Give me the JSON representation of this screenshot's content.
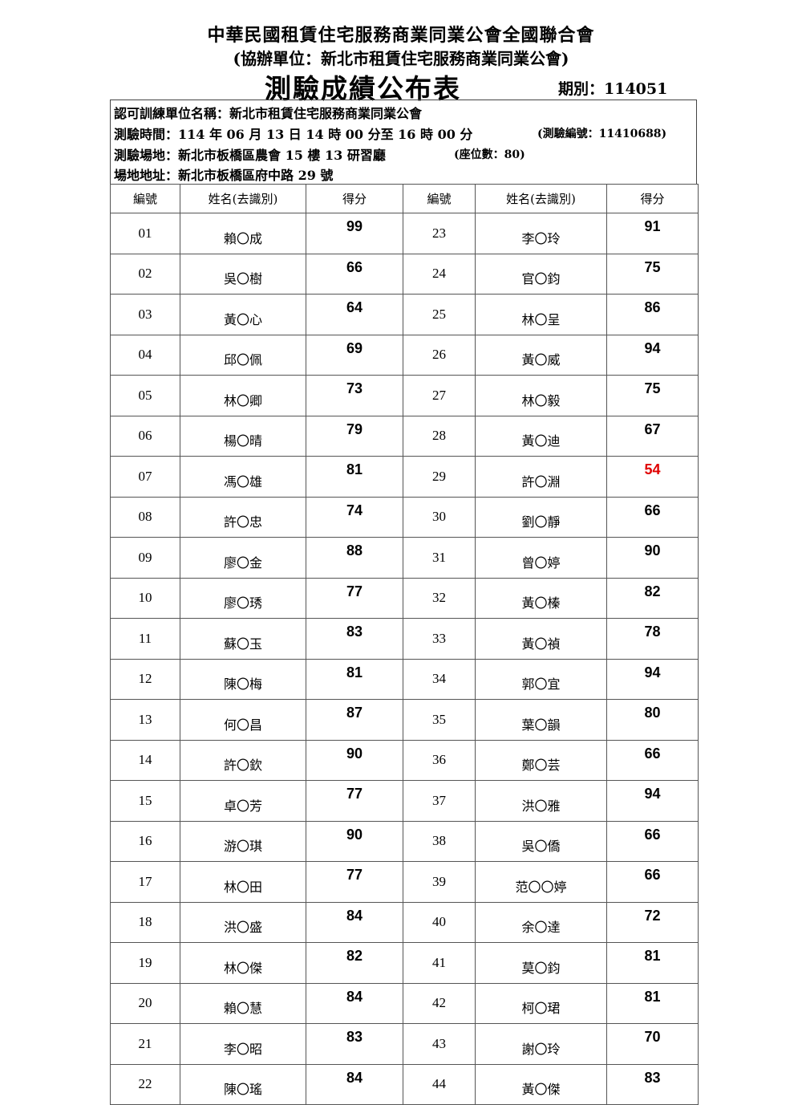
{
  "header": {
    "org": "中華民國租賃住宅服務商業同業公會全國聯合會",
    "co_org": "(協辦單位：新北市租賃住宅服務商業同業公會)",
    "title": "測驗成績公布表",
    "period": "期別：114051"
  },
  "info": {
    "unit": "認可訓練單位名稱：新北市租賃住宅服務商業同業公會",
    "time": "測驗時間：114 年 06 月 13 日 14 時 00 分至 16 時 00 分",
    "exam_no": "(測驗編號：11410688)",
    "venue": "測驗場地：新北市板橋區農會 15 樓 13 研習廳",
    "seats": "(座位數：80)",
    "address": "場地地址：新北市板橋區府中路 29 號"
  },
  "table": {
    "headers": [
      "編號",
      "姓名(去識別)",
      "得分",
      "編號",
      "姓名(去識別)",
      "得分"
    ],
    "fail_color": "#e00000",
    "left": [
      {
        "no": "01",
        "name": "賴〇成",
        "score": "99"
      },
      {
        "no": "02",
        "name": "吳〇樹",
        "score": "66"
      },
      {
        "no": "03",
        "name": "黃〇心",
        "score": "64"
      },
      {
        "no": "04",
        "name": "邱〇佩",
        "score": "69"
      },
      {
        "no": "05",
        "name": "林〇卿",
        "score": "73"
      },
      {
        "no": "06",
        "name": "楊〇晴",
        "score": "79"
      },
      {
        "no": "07",
        "name": "馮〇雄",
        "score": "81"
      },
      {
        "no": "08",
        "name": "許〇忠",
        "score": "74"
      },
      {
        "no": "09",
        "name": "廖〇金",
        "score": "88"
      },
      {
        "no": "10",
        "name": "廖〇琇",
        "score": "77"
      },
      {
        "no": "11",
        "name": "蘇〇玉",
        "score": "83"
      },
      {
        "no": "12",
        "name": "陳〇梅",
        "score": "81"
      },
      {
        "no": "13",
        "name": "何〇昌",
        "score": "87"
      },
      {
        "no": "14",
        "name": "許〇欽",
        "score": "90"
      },
      {
        "no": "15",
        "name": "卓〇芳",
        "score": "77"
      },
      {
        "no": "16",
        "name": "游〇琪",
        "score": "90"
      },
      {
        "no": "17",
        "name": "林〇田",
        "score": "77"
      },
      {
        "no": "18",
        "name": "洪〇盛",
        "score": "84"
      },
      {
        "no": "19",
        "name": "林〇傑",
        "score": "82"
      },
      {
        "no": "20",
        "name": "賴〇慧",
        "score": "84"
      },
      {
        "no": "21",
        "name": "李〇昭",
        "score": "83"
      },
      {
        "no": "22",
        "name": "陳〇瑤",
        "score": "84"
      }
    ],
    "right": [
      {
        "no": "23",
        "name": "李〇玲",
        "score": "91"
      },
      {
        "no": "24",
        "name": "官〇鈞",
        "score": "75"
      },
      {
        "no": "25",
        "name": "林〇呈",
        "score": "86"
      },
      {
        "no": "26",
        "name": "黃〇威",
        "score": "94"
      },
      {
        "no": "27",
        "name": "林〇毅",
        "score": "75"
      },
      {
        "no": "28",
        "name": "黃〇迪",
        "score": "67"
      },
      {
        "no": "29",
        "name": "許〇淵",
        "score": "54",
        "fail": true
      },
      {
        "no": "30",
        "name": "劉〇靜",
        "score": "66"
      },
      {
        "no": "31",
        "name": "曾〇婷",
        "score": "90"
      },
      {
        "no": "32",
        "name": "黃〇榛",
        "score": "82"
      },
      {
        "no": "33",
        "name": "黃〇禎",
        "score": "78"
      },
      {
        "no": "34",
        "name": "郭〇宜",
        "score": "94"
      },
      {
        "no": "35",
        "name": "葉〇韻",
        "score": "80"
      },
      {
        "no": "36",
        "name": "鄭〇芸",
        "score": "66"
      },
      {
        "no": "37",
        "name": "洪〇雅",
        "score": "94"
      },
      {
        "no": "38",
        "name": "吳〇僑",
        "score": "66"
      },
      {
        "no": "39",
        "name": "范〇〇婷",
        "score": "66"
      },
      {
        "no": "40",
        "name": "余〇達",
        "score": "72"
      },
      {
        "no": "41",
        "name": "莫〇鈞",
        "score": "81"
      },
      {
        "no": "42",
        "name": "柯〇珺",
        "score": "81"
      },
      {
        "no": "43",
        "name": "謝〇玲",
        "score": "70"
      },
      {
        "no": "44",
        "name": "黃〇傑",
        "score": "83"
      }
    ]
  }
}
